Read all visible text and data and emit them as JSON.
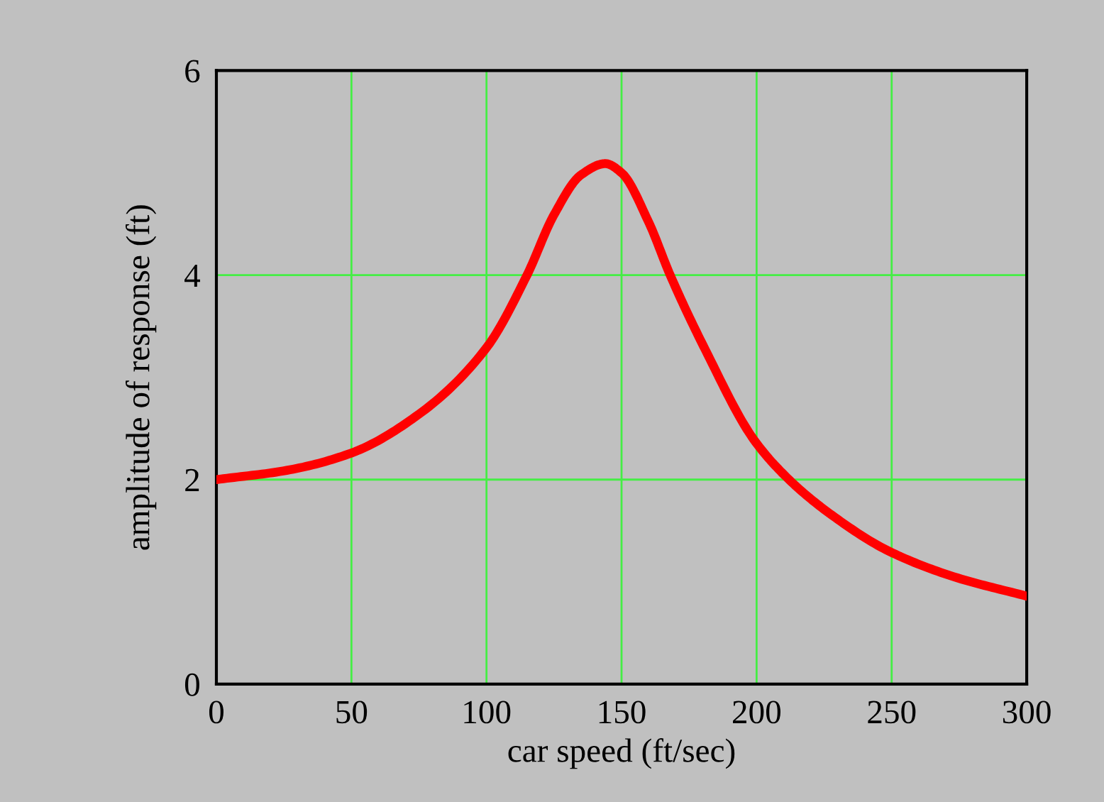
{
  "chart_data": {
    "type": "line",
    "xlabel": "car speed (ft/sec)",
    "ylabel": "amplitude of response (ft)",
    "x": [
      0,
      26,
      50,
      75,
      100,
      115,
      125,
      135,
      144,
      150,
      160,
      168,
      181,
      199,
      212,
      228,
      249,
      273,
      300
    ],
    "series": [
      {
        "color": "#ff0000",
        "values": [
          2.0,
          2.09,
          2.26,
          2.64,
          3.29,
          4.0,
          4.59,
          4.98,
          5.09,
          5.0,
          4.52,
          4.0,
          3.27,
          2.39,
          2.0,
          1.65,
          1.3,
          1.05,
          0.86
        ]
      }
    ],
    "xlim": [
      0,
      300
    ],
    "ylim": [
      0,
      6
    ],
    "xticks": [
      0,
      50,
      100,
      150,
      200,
      250,
      300
    ],
    "yticks": [
      0,
      2,
      4,
      6
    ],
    "grid": true,
    "line_style": "solid"
  }
}
